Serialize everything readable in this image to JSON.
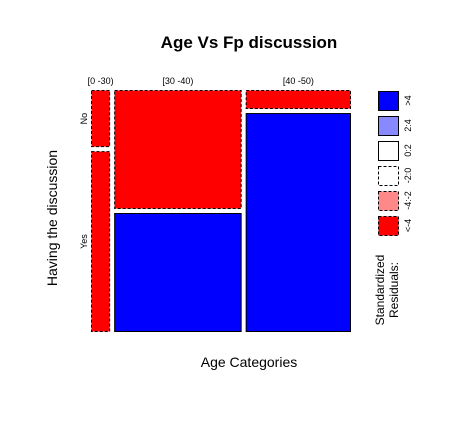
{
  "chart_data": {
    "type": "mosaic",
    "title": "Age Vs Fp discussion",
    "xlabel": "Age Categories",
    "ylabel": "Having the discussion",
    "categories": [
      "[0 -30)",
      "[30 -40)",
      "[40 -50)"
    ],
    "rows": [
      "No",
      "Yes"
    ],
    "column_shares": [
      0.076,
      0.506,
      0.418
    ],
    "no_fraction": [
      0.24,
      0.5,
      0.08
    ],
    "residual_sign": [
      [
        "negative",
        "negative"
      ],
      [
        "negative",
        "positive"
      ],
      [
        "negative",
        "positive"
      ]
    ],
    "legend": {
      "title": [
        "Standardized",
        "Residuals:"
      ],
      "entries": [
        ">4",
        "2:4",
        "0:2",
        "-2:0",
        "-4:-2",
        "<-4"
      ],
      "fills": [
        "#0000ff",
        "#8888ff",
        "#ffffff",
        "#ffffff",
        "#ff8888",
        "#ff0000"
      ],
      "dashed": [
        false,
        false,
        false,
        true,
        true,
        true
      ]
    }
  }
}
